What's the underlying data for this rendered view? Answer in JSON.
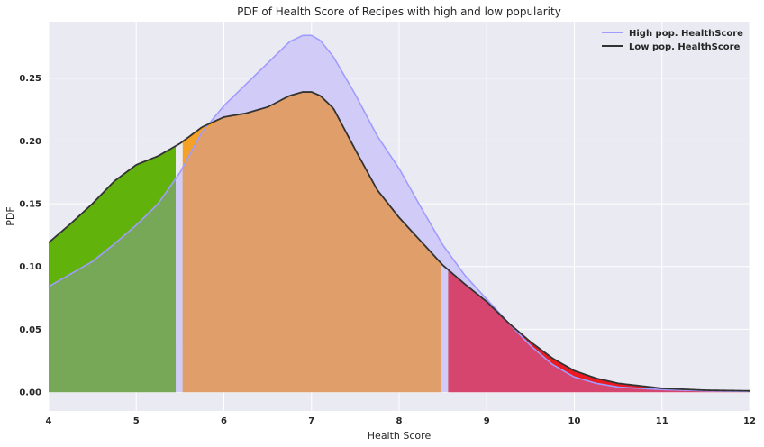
{
  "chart_data": {
    "type": "area",
    "title": "PDF of Health Score of Recipes with high and low popularity",
    "xlabel": "Health Score",
    "ylabel": "PDF",
    "xlim": [
      4,
      12
    ],
    "ylim": [
      -0.015,
      0.295
    ],
    "x_ticks": [
      4,
      5,
      6,
      7,
      8,
      9,
      10,
      11,
      12
    ],
    "y_ticks": [
      0.0,
      0.05,
      0.1,
      0.15,
      0.2,
      0.25
    ],
    "y_tick_labels": [
      "0.00",
      "0.05",
      "0.10",
      "0.15",
      "0.20",
      "0.25"
    ],
    "grid": true,
    "legend_position": "top-right",
    "series": [
      {
        "name": "High pop. HealthScore",
        "color": "#a09cff",
        "fill": "#d0ccf7",
        "x": [
          4.0,
          4.25,
          4.5,
          4.75,
          5.0,
          5.25,
          5.5,
          5.75,
          6.0,
          6.25,
          6.5,
          6.75,
          6.9,
          7.0,
          7.1,
          7.25,
          7.5,
          7.75,
          8.0,
          8.25,
          8.5,
          8.75,
          9.0,
          9.25,
          9.5,
          9.75,
          10.0,
          10.25,
          10.5,
          10.75,
          11.0,
          11.5,
          12.0
        ],
        "y": [
          0.084,
          0.094,
          0.104,
          0.118,
          0.133,
          0.15,
          0.175,
          0.207,
          0.228,
          0.245,
          0.262,
          0.279,
          0.284,
          0.284,
          0.28,
          0.267,
          0.237,
          0.204,
          0.178,
          0.147,
          0.117,
          0.093,
          0.074,
          0.055,
          0.037,
          0.022,
          0.012,
          0.007,
          0.004,
          0.003,
          0.002,
          0.001,
          0.0005
        ]
      },
      {
        "name": "Low pop. HealthScore",
        "color": "#333333",
        "x": [
          4.0,
          4.25,
          4.5,
          4.75,
          5.0,
          5.25,
          5.5,
          5.75,
          6.0,
          6.25,
          6.5,
          6.75,
          6.9,
          7.0,
          7.1,
          7.25,
          7.5,
          7.75,
          8.0,
          8.25,
          8.5,
          8.75,
          9.0,
          9.25,
          9.5,
          9.75,
          10.0,
          10.25,
          10.5,
          10.75,
          11.0,
          11.5,
          12.0
        ],
        "y": [
          0.119,
          0.134,
          0.15,
          0.168,
          0.181,
          0.188,
          0.198,
          0.211,
          0.219,
          0.222,
          0.227,
          0.236,
          0.239,
          0.239,
          0.236,
          0.226,
          0.193,
          0.161,
          0.139,
          0.12,
          0.101,
          0.086,
          0.072,
          0.055,
          0.04,
          0.027,
          0.017,
          0.011,
          0.007,
          0.005,
          0.003,
          0.0015,
          0.001
        ]
      }
    ],
    "bands": [
      {
        "from": 4.0,
        "to": 5.45,
        "low_color": "#62b20c",
        "high_color": "#76a858"
      },
      {
        "from": 5.53,
        "to": 8.48,
        "low_color": "#f5a026",
        "high_color": "#e09f6a"
      },
      {
        "from": 8.56,
        "to": 12.0,
        "low_color": "#ee1a22",
        "high_color": "#d6456e"
      }
    ]
  }
}
